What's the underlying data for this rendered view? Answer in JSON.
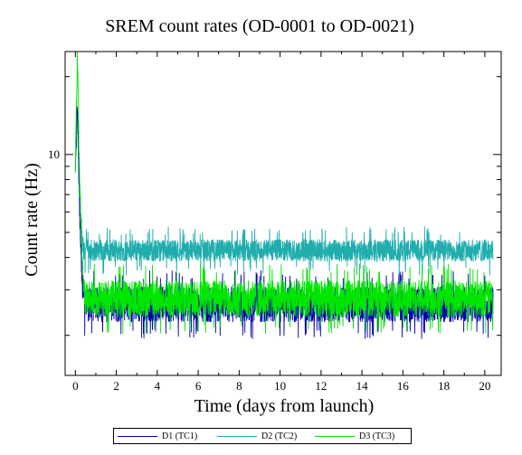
{
  "chart_data": {
    "type": "line",
    "title": "SREM count rates (OD-0001 to OD-0021)",
    "xlabel": "Time (days from launch)",
    "ylabel": "Count rate (Hz)",
    "xlim": [
      -0.5,
      20.8
    ],
    "ylim": [
      1.4,
      25
    ],
    "yscale": "log",
    "x_ticks": [
      0,
      2,
      4,
      6,
      8,
      10,
      12,
      14,
      16,
      18,
      20
    ],
    "x_tick_labels": [
      "0",
      "2",
      "4",
      "6",
      "8",
      "10",
      "12",
      "14",
      "16",
      "18",
      "20"
    ],
    "y_tick_labels": [
      {
        "value": 10,
        "label": "10"
      }
    ],
    "grid": false,
    "legend_position": "bottom",
    "series": [
      {
        "name": "D1 (TC1)",
        "color": "#0000b4",
        "x": [
          0,
          0.1,
          0.2,
          0.35,
          0.5,
          1,
          5,
          10,
          15,
          20,
          20.4
        ],
        "y": [
          8,
          16,
          6,
          3,
          2.7,
          2.6,
          2.6,
          2.6,
          2.6,
          2.6,
          2.6
        ],
        "noise_low": 2.1,
        "noise_high": 3.3
      },
      {
        "name": "D2 (TC2)",
        "color": "#1fadad",
        "x": [
          0,
          0.1,
          0.2,
          0.35,
          0.5,
          1,
          5,
          10,
          15,
          20,
          20.4
        ],
        "y": [
          9,
          14,
          7,
          4.3,
          4.2,
          4.2,
          4.2,
          4.25,
          4.25,
          4.3,
          4.3
        ],
        "noise_low": 3.7,
        "noise_high": 4.9
      },
      {
        "name": "D3 (TC3)",
        "color": "#00e600",
        "x": [
          0,
          0.1,
          0.2,
          0.35,
          0.5,
          1,
          5,
          10,
          15,
          20,
          20.4
        ],
        "y": [
          9,
          24,
          8,
          3.5,
          2.8,
          2.75,
          2.75,
          2.75,
          2.75,
          2.75,
          2.75
        ],
        "noise_low": 2.2,
        "noise_high": 3.5
      }
    ]
  },
  "colors": {
    "axis": "#000000",
    "background": "#ffffff"
  }
}
